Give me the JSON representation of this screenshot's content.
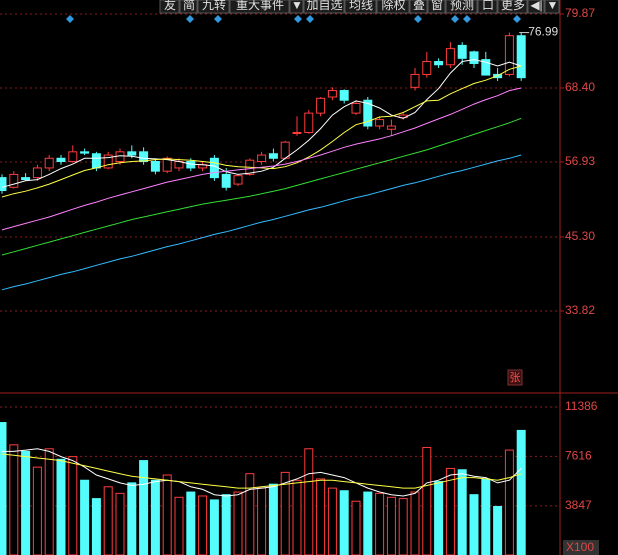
{
  "toolbar": [
    "友",
    "简",
    "九转",
    "重大事件",
    "▼",
    "加自选",
    "均线",
    "除权",
    "叠",
    "窗",
    "预测",
    "口",
    "更多",
    "◀|",
    "▼"
  ],
  "chart_data": {
    "type": "candlestick",
    "up_color": "#ff3c3c",
    "down_color": "#54fcfc",
    "ylim": [
      21.26,
      82.04
    ],
    "yticks": [
      79.87,
      {
        "value": 68.4,
        "label": "68.40"
      },
      56.93,
      {
        "value": 45.3,
        "label": "45.30"
      },
      33.82
    ],
    "grid": true,
    "open": [
      54.5,
      53,
      54.5,
      54.5,
      56,
      57.5,
      57,
      58.5,
      58.2,
      56,
      57,
      58.5,
      58.5,
      57,
      55.5,
      56,
      57,
      56,
      57.5,
      55,
      53.5,
      55,
      57,
      58.2,
      57.5,
      61.5,
      61.5,
      64.5,
      67,
      68,
      64.5,
      66.5,
      62.5,
      62,
      63.8,
      68.5,
      70.5,
      72.5,
      72,
      75,
      74,
      72.8,
      70.5,
      70.5,
      76.5
    ],
    "high": [
      55,
      55.5,
      55.2,
      56.5,
      58,
      58,
      59.5,
      59,
      58.5,
      58.5,
      59,
      59.5,
      59.2,
      57.5,
      57.8,
      57.5,
      57.5,
      57,
      58,
      56,
      55,
      57.5,
      58.5,
      59,
      60.2,
      64,
      65,
      67,
      68.5,
      68.2,
      66.5,
      67,
      64,
      63.5,
      64.5,
      71.5,
      74,
      73,
      75.5,
      75.5,
      74.2,
      74,
      71.5,
      77,
      76.99
    ],
    "low": [
      52,
      52.8,
      54,
      54,
      55.5,
      56.5,
      56.8,
      58,
      55.5,
      55.8,
      56.5,
      57.5,
      56.5,
      55,
      55.2,
      55.5,
      55.5,
      55.5,
      54,
      52.5,
      53.2,
      54.8,
      56.5,
      57,
      57.3,
      61,
      61.3,
      64,
      66.5,
      66,
      64.2,
      62,
      62,
      61,
      63.5,
      68,
      70,
      71.5,
      71.5,
      72,
      71.5,
      70.4,
      69.5,
      70.2,
      69.5
    ],
    "close": [
      52.5,
      55,
      54.2,
      56,
      57.5,
      57,
      58.5,
      58.3,
      56,
      58,
      58.5,
      58,
      57,
      55.5,
      57.5,
      57,
      56,
      56.5,
      54.5,
      53,
      54.8,
      57.2,
      58,
      57.5,
      60,
      61.5,
      64.5,
      66.8,
      68,
      66.5,
      66,
      62.5,
      63.5,
      62.5,
      64.2,
      70.5,
      72.5,
      72,
      74.5,
      73,
      72.2,
      70.4,
      70,
      76.5,
      70
    ],
    "ma_lines": [
      {
        "color": "#ffffff",
        "values": [
          53,
          53.5,
          54,
          54.2,
          55,
          55.9,
          56.6,
          57.5,
          57.5,
          57.6,
          57.9,
          57.8,
          57.5,
          57.4,
          57.3,
          57,
          56.6,
          56.5,
          56.3,
          55.4,
          55,
          55.2,
          55.5,
          56.1,
          57.5,
          58.8,
          60.3,
          62.1,
          64.2,
          65.5,
          66.4,
          66,
          65.3,
          64.2,
          63.7,
          64.6,
          66.6,
          68.3,
          70.7,
          72.5,
          72.8,
          72.4,
          71.8,
          72.4,
          71.8
        ]
      },
      {
        "color": "#ffff44",
        "values": [
          51.5,
          52,
          52.4,
          52.9,
          53.5,
          54.2,
          54.9,
          55.6,
          56,
          56.5,
          56.8,
          57,
          57.1,
          57.3,
          57.4,
          57.3,
          57.2,
          57,
          56.8,
          56.4,
          56.2,
          56.1,
          56,
          55.9,
          56.2,
          56.8,
          57.7,
          58.8,
          60.1,
          61.5,
          62.7,
          63.2,
          63.9,
          64,
          64.6,
          65.5,
          66.4,
          66.5,
          67.5,
          68.3,
          69.1,
          69.6,
          70.3,
          71.3,
          71.8
        ]
      },
      {
        "color": "#ff80ff",
        "values": [
          46.4,
          46.9,
          47.4,
          47.9,
          48.4,
          49,
          49.6,
          50.2,
          50.7,
          51.3,
          51.8,
          52.3,
          52.8,
          53.3,
          53.8,
          54.2,
          54.6,
          55,
          55.3,
          55.5,
          55.7,
          55.9,
          56.1,
          56.3,
          56.6,
          57,
          57.5,
          58,
          58.6,
          59.2,
          59.7,
          60.1,
          60.5,
          61,
          61.6,
          62.2,
          62.9,
          63.6,
          64.3,
          65.1,
          65.9,
          66.6,
          67.2,
          68,
          68.4
        ]
      },
      {
        "color": "#33dd33",
        "values": [
          42.5,
          43,
          43.5,
          44,
          44.5,
          45,
          45.5,
          46,
          46.5,
          47,
          47.5,
          48,
          48.4,
          48.8,
          49.2,
          49.6,
          50,
          50.4,
          50.7,
          51,
          51.3,
          51.6,
          52,
          52.4,
          52.8,
          53.3,
          53.8,
          54.3,
          54.8,
          55.3,
          55.8,
          56.3,
          56.8,
          57.3,
          57.8,
          58.3,
          58.8,
          59.4,
          60,
          60.6,
          61.2,
          61.8,
          62.4,
          63,
          63.7
        ]
      },
      {
        "color": "#33bbff",
        "values": [
          37.1,
          37.6,
          38.0,
          38.5,
          39.0,
          39.5,
          39.9,
          40.4,
          40.9,
          41.4,
          41.9,
          42.3,
          42.8,
          43.3,
          43.8,
          44.2,
          44.7,
          45.2,
          45.7,
          46.1,
          46.6,
          47.1,
          47.6,
          48.0,
          48.5,
          49.0,
          49.5,
          49.9,
          50.4,
          50.9,
          51.4,
          51.8,
          52.3,
          52.8,
          53.3,
          53.7,
          54.2,
          54.7,
          55.2,
          55.6,
          56.1,
          56.6,
          57.1,
          57.5,
          58.0
        ]
      }
    ],
    "badge": "张",
    "volume": {
      "unit": "X100",
      "ylim": [
        100,
        12300
      ],
      "yticks": [
        11386,
        7616,
        3847
      ],
      "values": [
        10200,
        8500,
        8000,
        6800,
        8200,
        7400,
        7600,
        5800,
        4400,
        5300,
        4800,
        5600,
        7300,
        5800,
        6200,
        4500,
        4900,
        4600,
        4300,
        4700,
        4900,
        6300,
        5200,
        5500,
        6400,
        5800,
        8200,
        5900,
        5200,
        5000,
        4200,
        4900,
        4800,
        4500,
        4400,
        4900,
        8300,
        5700,
        6700,
        6600,
        4700,
        5900,
        3800,
        8100,
        9600
      ],
      "ma_lines": [
        {
          "color": "#ffffff",
          "values": [
            8000,
            8000,
            8100,
            8200,
            8000,
            7600,
            7300,
            6800,
            6200,
            5900,
            5600,
            5400,
            5500,
            5700,
            5800,
            5700,
            5300,
            5100,
            4700,
            4600,
            4700,
            5100,
            5200,
            5300,
            5600,
            5900,
            6300,
            6400,
            6200,
            6000,
            5600,
            5200,
            4900,
            4700,
            4600,
            4800,
            5600,
            5800,
            6200,
            6300,
            6100,
            6000,
            5600,
            5800,
            6700
          ]
        },
        {
          "color": "#ffff44",
          "values": [
            7800,
            7700,
            7600,
            7500,
            7400,
            7300,
            7100,
            6900,
            6700,
            6500,
            6300,
            6100,
            6000,
            5900,
            5800,
            5700,
            5600,
            5500,
            5400,
            5300,
            5200,
            5200,
            5300,
            5400,
            5500,
            5600,
            5700,
            5800,
            5800,
            5700,
            5600,
            5500,
            5400,
            5300,
            5200,
            5200,
            5400,
            5600,
            5800,
            6000,
            6000,
            5900,
            5800,
            6000,
            6300
          ]
        }
      ]
    }
  }
}
